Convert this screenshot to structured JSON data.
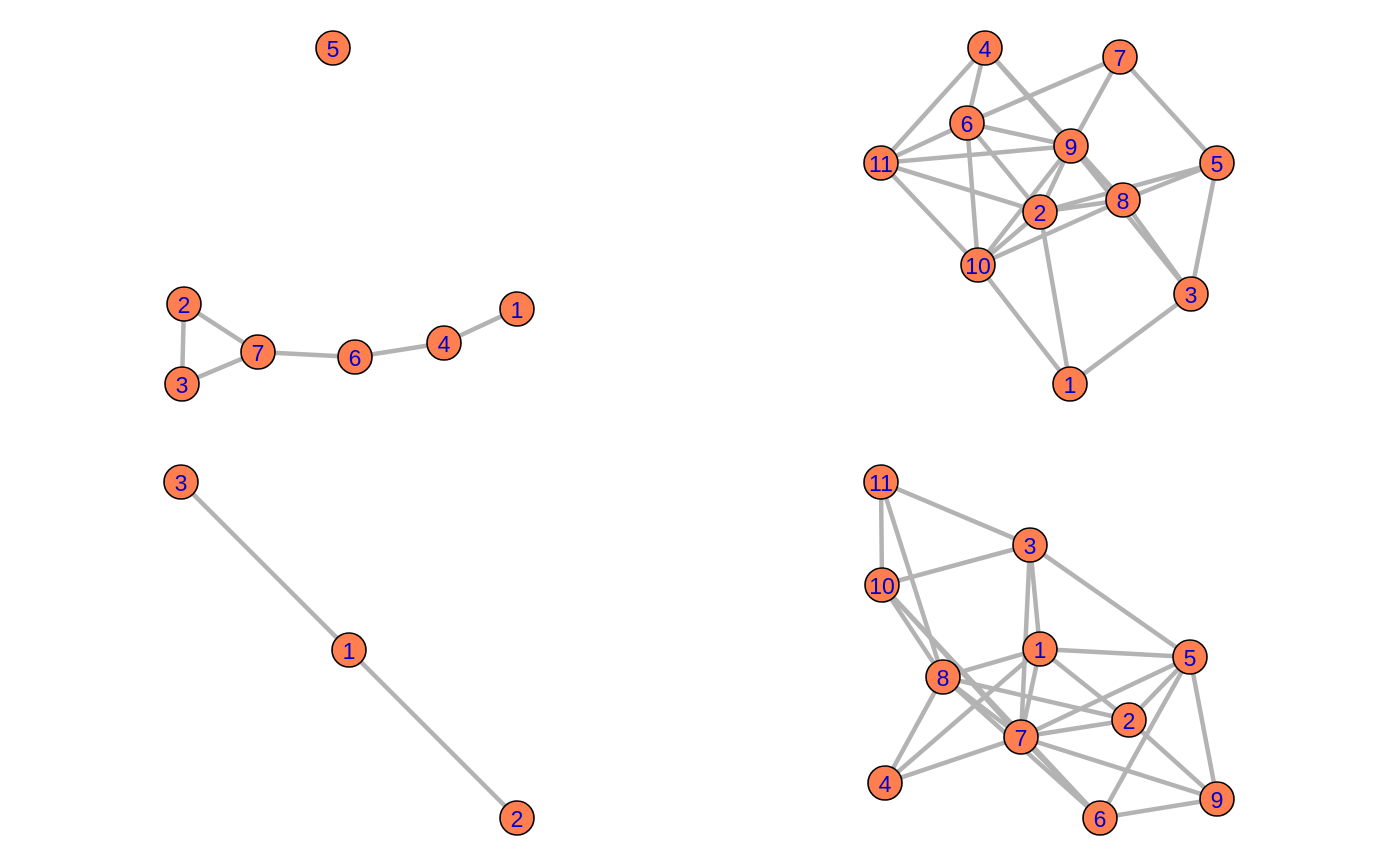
{
  "colors": {
    "node_fill": "#ff7f50",
    "node_stroke": "#000000",
    "label": "#0000cc",
    "edge": "#b3b3b3",
    "background": "#ffffff"
  },
  "graphs": [
    {
      "nodes": [
        {
          "id": "5"
        }
      ],
      "edges": []
    },
    {
      "nodes": [
        {
          "id": "1"
        },
        {
          "id": "2"
        },
        {
          "id": "3"
        },
        {
          "id": "4"
        },
        {
          "id": "5"
        },
        {
          "id": "6"
        },
        {
          "id": "7"
        },
        {
          "id": "8"
        },
        {
          "id": "9"
        },
        {
          "id": "10"
        },
        {
          "id": "11"
        }
      ],
      "edges": [
        [
          "4",
          "6"
        ],
        [
          "4",
          "11"
        ],
        [
          "4",
          "9"
        ],
        [
          "4",
          "8"
        ],
        [
          "6",
          "7"
        ],
        [
          "6",
          "11"
        ],
        [
          "6",
          "9"
        ],
        [
          "6",
          "2"
        ],
        [
          "6",
          "10"
        ],
        [
          "11",
          "9"
        ],
        [
          "11",
          "2"
        ],
        [
          "11",
          "10"
        ],
        [
          "7",
          "9"
        ],
        [
          "7",
          "5"
        ],
        [
          "9",
          "2"
        ],
        [
          "9",
          "10"
        ],
        [
          "9",
          "8"
        ],
        [
          "9",
          "3"
        ],
        [
          "2",
          "8"
        ],
        [
          "2",
          "5"
        ],
        [
          "2",
          "10"
        ],
        [
          "2",
          "1"
        ],
        [
          "8",
          "5"
        ],
        [
          "8",
          "10"
        ],
        [
          "8",
          "3"
        ],
        [
          "5",
          "3"
        ],
        [
          "3",
          "1"
        ],
        [
          "10",
          "1"
        ]
      ]
    },
    {
      "nodes": [
        {
          "id": "1"
        },
        {
          "id": "2"
        },
        {
          "id": "3"
        },
        {
          "id": "4"
        },
        {
          "id": "6"
        },
        {
          "id": "7"
        }
      ],
      "edges": [
        [
          "2",
          "7"
        ],
        [
          "2",
          "3"
        ],
        [
          "3",
          "7"
        ],
        [
          "7",
          "6"
        ],
        [
          "6",
          "4"
        ],
        [
          "4",
          "1"
        ]
      ]
    },
    {
      "nodes": [
        {
          "id": "1"
        },
        {
          "id": "2"
        },
        {
          "id": "3"
        }
      ],
      "edges": [
        [
          "3",
          "1"
        ],
        [
          "1",
          "2"
        ]
      ]
    },
    {
      "nodes": [
        {
          "id": "1"
        },
        {
          "id": "2"
        },
        {
          "id": "3"
        },
        {
          "id": "4"
        },
        {
          "id": "5"
        },
        {
          "id": "6"
        },
        {
          "id": "7"
        },
        {
          "id": "8"
        },
        {
          "id": "9"
        },
        {
          "id": "10"
        },
        {
          "id": "11"
        }
      ],
      "edges": [
        [
          "11",
          "3"
        ],
        [
          "11",
          "10"
        ],
        [
          "11",
          "8"
        ],
        [
          "10",
          "3"
        ],
        [
          "10",
          "8"
        ],
        [
          "10",
          "7"
        ],
        [
          "10",
          "6"
        ],
        [
          "3",
          "1"
        ],
        [
          "3",
          "7"
        ],
        [
          "3",
          "5"
        ],
        [
          "1",
          "8"
        ],
        [
          "1",
          "5"
        ],
        [
          "1",
          "2"
        ],
        [
          "1",
          "7"
        ],
        [
          "1",
          "4"
        ],
        [
          "8",
          "2"
        ],
        [
          "8",
          "7"
        ],
        [
          "8",
          "4"
        ],
        [
          "8",
          "6"
        ],
        [
          "5",
          "2"
        ],
        [
          "5",
          "7"
        ],
        [
          "5",
          "6"
        ],
        [
          "5",
          "9"
        ],
        [
          "2",
          "7"
        ],
        [
          "2",
          "9"
        ],
        [
          "7",
          "4"
        ],
        [
          "7",
          "6"
        ],
        [
          "7",
          "9"
        ],
        [
          "6",
          "9"
        ]
      ]
    }
  ]
}
